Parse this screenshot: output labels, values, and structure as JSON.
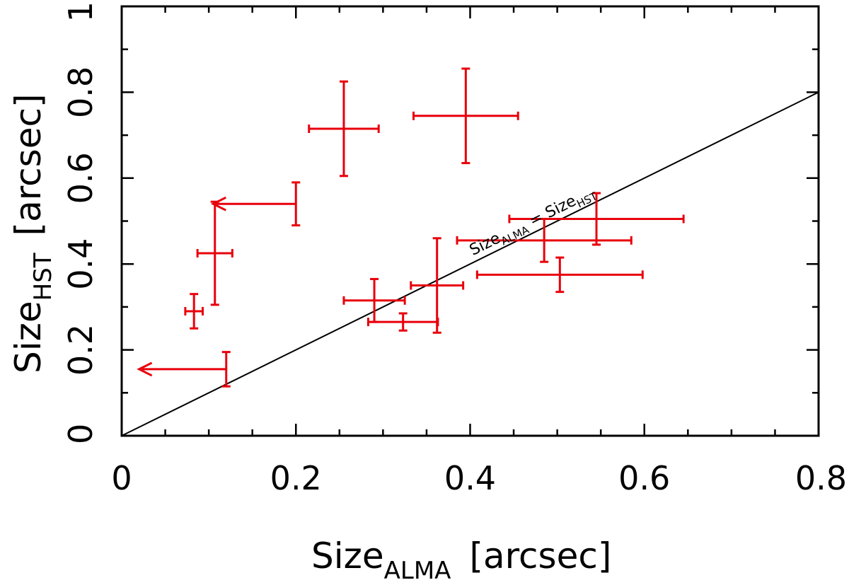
{
  "chart_data": {
    "type": "scatter",
    "title": "",
    "xlabel": {
      "main": "Size",
      "sub": "ALMA",
      "unit": "[arcsec]"
    },
    "ylabel": {
      "main": "Size",
      "sub": "HST",
      "unit": "[arcsec]"
    },
    "xlim": [
      0,
      0.8
    ],
    "ylim": [
      0,
      1
    ],
    "xticks": [
      0,
      0.2,
      0.4,
      0.6,
      0.8
    ],
    "xtick_labels": [
      "0",
      "0.2",
      "0.4",
      "0.6",
      "0.8"
    ],
    "yticks": [
      0,
      0.2,
      0.4,
      0.6,
      0.8,
      1
    ],
    "ytick_labels": [
      "0",
      "0.2",
      "0.4",
      "0.6",
      "0.8",
      "1"
    ],
    "series_color": "#e8000b",
    "line_color": "#000000",
    "reference_line": {
      "x": [
        0,
        0.8
      ],
      "y": [
        0,
        0.8
      ],
      "label": {
        "main": "Size",
        "sub1": "ALMA",
        "eq": " = ",
        "main2": "Size",
        "sub2": "HST"
      }
    },
    "points": [
      {
        "x": 0.255,
        "y": 0.715,
        "xerr": 0.04,
        "yerr": 0.11
      },
      {
        "x": 0.395,
        "y": 0.745,
        "xerr": 0.06,
        "yerr": 0.11
      },
      {
        "x": 0.2,
        "y": 0.54,
        "xerr": 0.0,
        "yerr": 0.05,
        "x_upper_limit": true,
        "arrow_to": 0.105
      },
      {
        "x": 0.107,
        "y": 0.425,
        "xerr": 0.02,
        "yerr": 0.12
      },
      {
        "x": 0.083,
        "y": 0.29,
        "xerr": 0.01,
        "yerr": 0.04
      },
      {
        "x": 0.12,
        "y": 0.155,
        "xerr": 0.0,
        "yerr": 0.04,
        "x_upper_limit": true,
        "arrow_to": 0.02
      },
      {
        "x": 0.29,
        "y": 0.315,
        "xerr": 0.035,
        "yerr": 0.05
      },
      {
        "x": 0.323,
        "y": 0.265,
        "xerr": 0.04,
        "yerr": 0.02
      },
      {
        "x": 0.362,
        "y": 0.35,
        "xerr": 0.03,
        "yerr": 0.11
      },
      {
        "x": 0.485,
        "y": 0.455,
        "xerr": 0.1,
        "yerr": 0.05
      },
      {
        "x": 0.545,
        "y": 0.505,
        "xerr": 0.1,
        "yerr": 0.06
      },
      {
        "x": 0.503,
        "y": 0.375,
        "xerr": 0.095,
        "yerr": 0.04
      }
    ]
  }
}
